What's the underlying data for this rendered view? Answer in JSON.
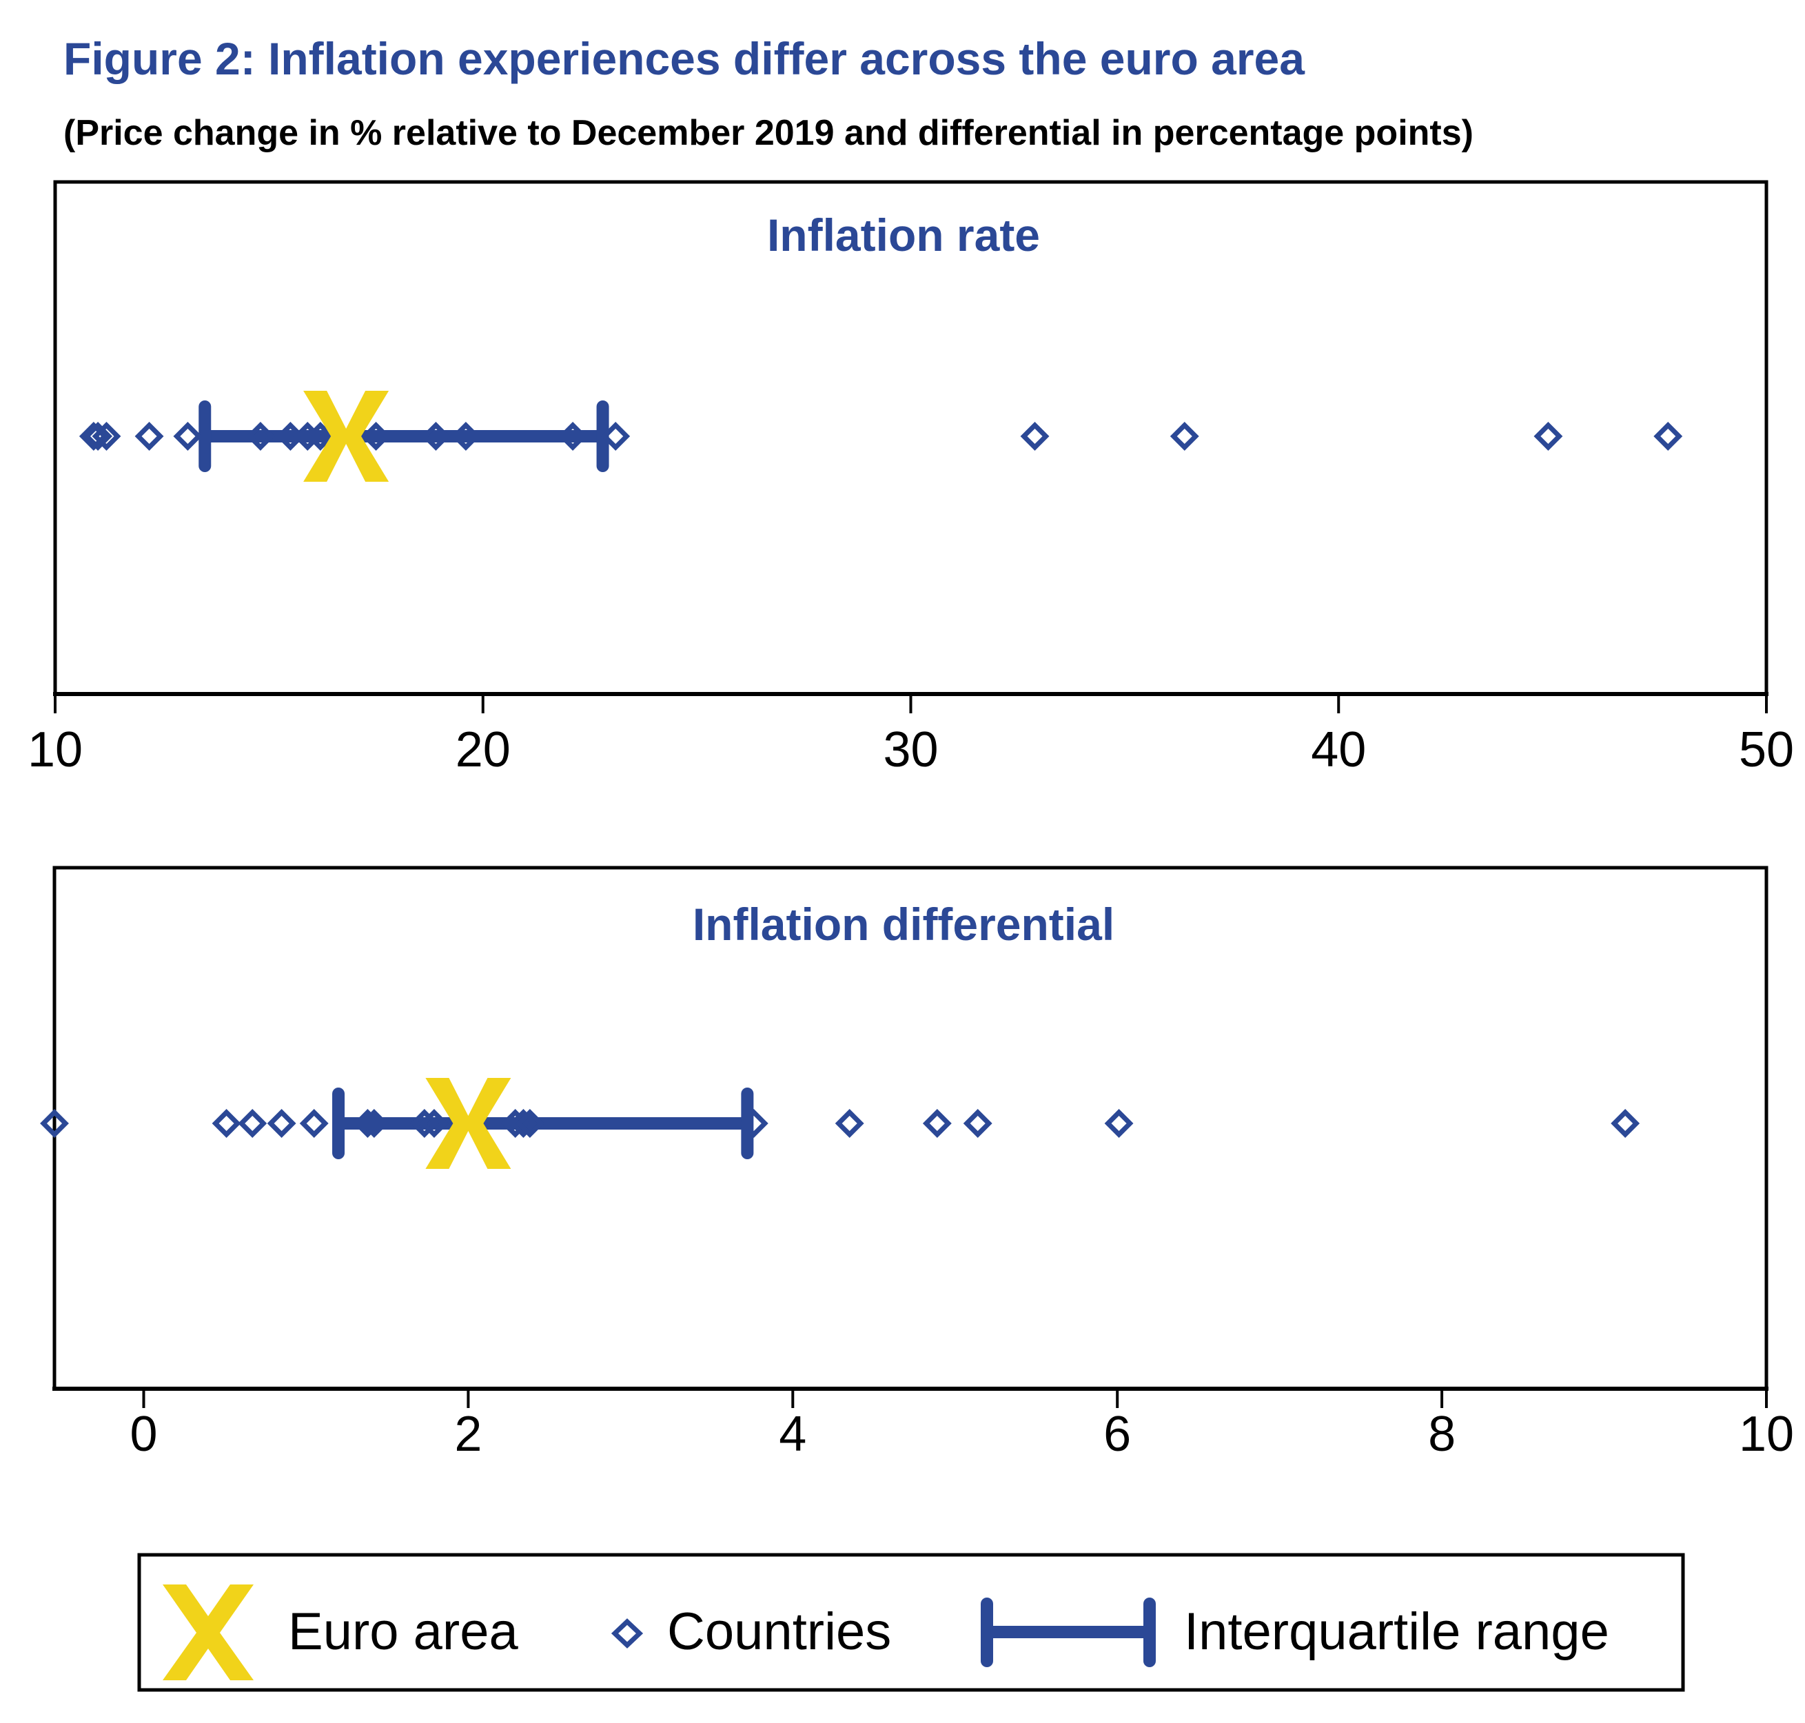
{
  "figure": {
    "title": "Figure 2: Inflation experiences differ across the euro area",
    "subtitle": "(Price change in % relative to December 2019 and differential in percentage points)"
  },
  "colors": {
    "accent_blue": "#2B4896",
    "euro_area_yellow": "#F1D31A",
    "axis": "#000000"
  },
  "legend": {
    "items": [
      {
        "label": "Euro area",
        "marker": "x-cross-icon"
      },
      {
        "label": "Countries",
        "marker": "hollow-diamond-icon"
      },
      {
        "label": "Interquartile range",
        "marker": "range-bar-icon"
      }
    ],
    "placement": "bottom"
  },
  "chart_data": [
    {
      "type": "scatter",
      "title": "Inflation rate",
      "xlabel": "",
      "ylabel": "",
      "xlim": [
        10,
        50
      ],
      "xticks": [
        10,
        20,
        30,
        40,
        50
      ],
      "xtick_labels": [
        "10",
        "20",
        "30",
        "40",
        "50"
      ],
      "grid": false,
      "euro_area": 16.8,
      "interquartile_range": [
        13.5,
        22.8
      ],
      "countries": [
        10.9,
        11.0,
        11.2,
        12.2,
        13.1,
        14.8,
        15.5,
        15.9,
        16.2,
        17.5,
        18.9,
        19.6,
        22.1,
        23.1,
        32.9,
        36.4,
        44.9,
        47.7
      ]
    },
    {
      "type": "scatter",
      "title": "Inflation differential",
      "xlabel": "",
      "ylabel": "",
      "xlim": [
        -0.55,
        10
      ],
      "xticks": [
        0,
        2,
        4,
        6,
        8,
        10
      ],
      "xtick_labels": [
        "0",
        "2",
        "4",
        "6",
        "8",
        "10"
      ],
      "grid": false,
      "euro_area": 2.0,
      "interquartile_range": [
        1.2,
        3.72
      ],
      "countries": [
        -0.55,
        0.51,
        0.67,
        0.85,
        1.05,
        1.38,
        1.42,
        1.73,
        1.79,
        2.29,
        2.34,
        2.38,
        3.76,
        4.35,
        4.89,
        5.14,
        6.01,
        9.13
      ]
    }
  ]
}
